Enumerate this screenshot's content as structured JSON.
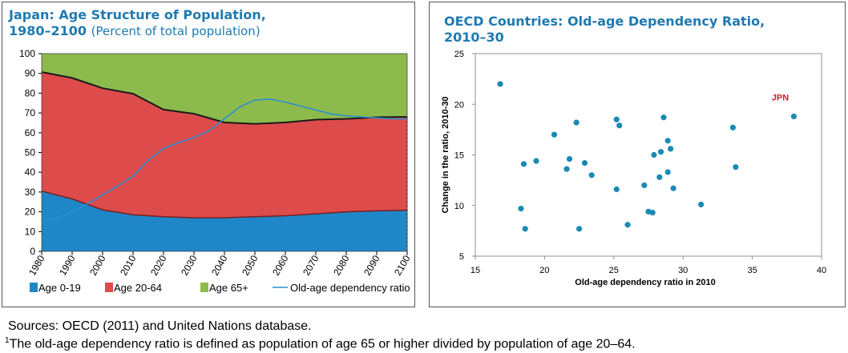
{
  "left_panel": {
    "title_line1": "Japan: Age Structure of Population,",
    "title_line2": "1980–2100",
    "subtitle": "(Percent of total population)"
  },
  "right_panel": {
    "title_line1": "OECD Countries: Old-age Dependency Ratio,",
    "title_line2": "2010–30"
  },
  "footnotes": {
    "sources": "Sources: OECD (2011) and United Nations database.",
    "note_marker": "1",
    "note": "The old-age dependency ratio is defined as population of age 65 or higher divided by population of age 20–64."
  },
  "chart_data": [
    {
      "type": "area",
      "x": [
        1980,
        1990,
        2000,
        2010,
        2020,
        2030,
        2040,
        2050,
        2060,
        2070,
        2080,
        2090,
        2100
      ],
      "x_ticks": [
        "1980",
        "1990",
        "2000",
        "2010",
        "2020",
        "2030",
        "2040",
        "2050",
        "2060",
        "2070",
        "2080",
        "2090",
        "2100"
      ],
      "ylim": [
        0,
        100
      ],
      "y_ticks": [
        "0",
        "10",
        "20",
        "30",
        "40",
        "50",
        "60",
        "70",
        "80",
        "90",
        "100"
      ],
      "grid": false,
      "legend_position": "bottom",
      "series": [
        {
          "name": "Age 0-19",
          "color": "#1f86c8",
          "values": [
            30.5,
            26.5,
            21.0,
            18.5,
            17.5,
            17.0,
            17.0,
            17.5,
            18.0,
            19.0,
            20.0,
            20.5,
            20.8
          ]
        },
        {
          "name": "Age 20-64",
          "color": "#dd4b4b",
          "values": [
            60.2,
            61.2,
            61.5,
            61.2,
            54.2,
            52.6,
            48.2,
            47.0,
            47.2,
            47.6,
            47.0,
            47.3,
            47.2
          ]
        },
        {
          "name": "Age 65+",
          "color": "#8cba4c",
          "values": [
            9.3,
            12.3,
            17.5,
            20.3,
            28.3,
            30.4,
            34.8,
            35.5,
            34.8,
            33.4,
            33.0,
            32.2,
            32.0
          ]
        }
      ],
      "line_series": {
        "name": "Old-age dependency ratio",
        "color": "#2a8fd0",
        "x": [
          1980,
          1985,
          1990,
          1995,
          2000,
          2005,
          2010,
          2015,
          2020,
          2025,
          2030,
          2035,
          2040,
          2045,
          2050,
          2055,
          2060,
          2065,
          2070,
          2075,
          2080,
          2085,
          2090,
          2095,
          2100
        ],
        "values": [
          15,
          17,
          20,
          24,
          28.5,
          33,
          38,
          46,
          52,
          55,
          57.5,
          61,
          67,
          73,
          76.5,
          77,
          75.5,
          73.5,
          71.5,
          69.5,
          68.5,
          68,
          67.5,
          67,
          67
        ]
      }
    },
    {
      "type": "scatter",
      "xlabel": "Old-age dependency ratio in 2010",
      "ylabel": "Change in the ratio, 2010-30",
      "xlim": [
        15,
        40
      ],
      "ylim": [
        5,
        25
      ],
      "x_ticks": [
        "15",
        "20",
        "25",
        "30",
        "35",
        "40"
      ],
      "y_ticks": [
        "5",
        "10",
        "15",
        "20",
        "25"
      ],
      "grid": false,
      "point_color": "#1a8ab4",
      "points": [
        {
          "x": 16.8,
          "y": 22.0
        },
        {
          "x": 18.3,
          "y": 9.7
        },
        {
          "x": 18.5,
          "y": 14.1
        },
        {
          "x": 18.6,
          "y": 7.7
        },
        {
          "x": 19.4,
          "y": 14.4
        },
        {
          "x": 20.7,
          "y": 17.0
        },
        {
          "x": 21.6,
          "y": 13.6
        },
        {
          "x": 21.8,
          "y": 14.6
        },
        {
          "x": 22.3,
          "y": 18.2
        },
        {
          "x": 22.5,
          "y": 7.7
        },
        {
          "x": 22.9,
          "y": 14.2
        },
        {
          "x": 23.4,
          "y": 13.0
        },
        {
          "x": 25.2,
          "y": 18.5
        },
        {
          "x": 25.2,
          "y": 11.6
        },
        {
          "x": 25.4,
          "y": 17.9
        },
        {
          "x": 26.0,
          "y": 8.1
        },
        {
          "x": 27.2,
          "y": 12.0
        },
        {
          "x": 27.5,
          "y": 9.4
        },
        {
          "x": 27.8,
          "y": 9.3
        },
        {
          "x": 27.9,
          "y": 15.0
        },
        {
          "x": 28.3,
          "y": 12.8
        },
        {
          "x": 28.4,
          "y": 15.3
        },
        {
          "x": 28.6,
          "y": 18.7
        },
        {
          "x": 28.9,
          "y": 13.3
        },
        {
          "x": 28.9,
          "y": 16.4
        },
        {
          "x": 29.1,
          "y": 15.6
        },
        {
          "x": 29.3,
          "y": 11.7
        },
        {
          "x": 31.3,
          "y": 10.1
        },
        {
          "x": 33.6,
          "y": 17.7
        },
        {
          "x": 33.8,
          "y": 13.8
        },
        {
          "x": 38.0,
          "y": 18.8,
          "label": "JPN"
        }
      ]
    }
  ]
}
